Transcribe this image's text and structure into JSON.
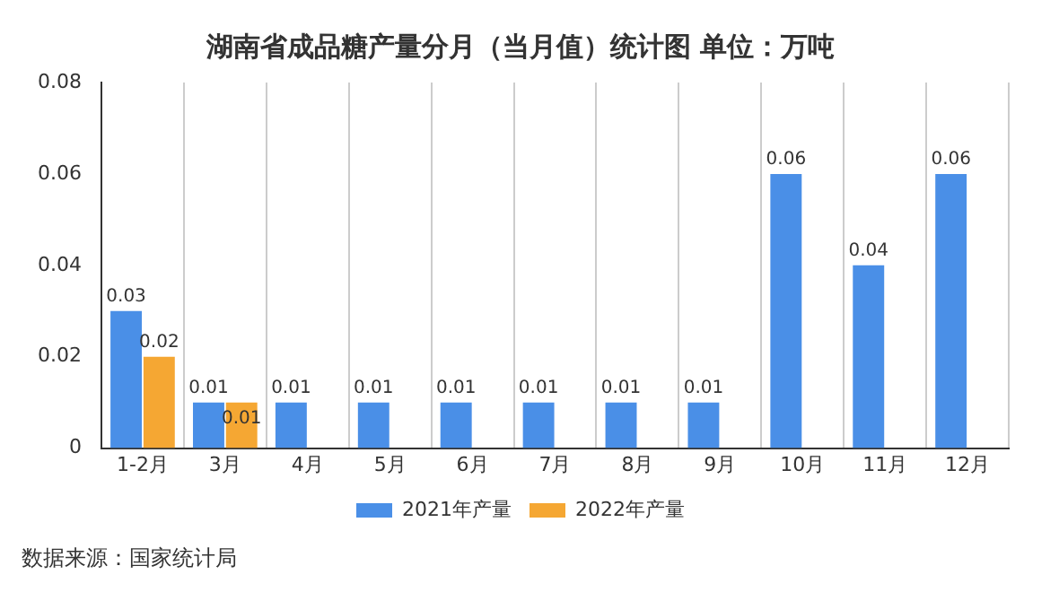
{
  "chart_data": {
    "type": "bar",
    "title": "湖南省成品糖产量分月（当月值）统计图 单位：万吨",
    "categories": [
      "1-2月",
      "3月",
      "4月",
      "5月",
      "6月",
      "7月",
      "8月",
      "9月",
      "10月",
      "11月",
      "12月"
    ],
    "series": [
      {
        "name": "2021年产量",
        "color": "#4a8fe7",
        "values": [
          0.03,
          0.01,
          0.01,
          0.01,
          0.01,
          0.01,
          0.01,
          0.01,
          0.06,
          0.04,
          0.06
        ]
      },
      {
        "name": "2022年产量",
        "color": "#f5a733",
        "values": [
          0.02,
          0.01,
          null,
          null,
          null,
          null,
          null,
          null,
          null,
          null,
          null
        ]
      }
    ],
    "ylim": [
      0,
      0.08
    ],
    "yticks": [
      0,
      0.02,
      0.04,
      0.06,
      0.08
    ],
    "grid": "x",
    "legend": "bottom",
    "data_labels": true,
    "annotations": [
      "数据来源：国家统计局"
    ]
  }
}
